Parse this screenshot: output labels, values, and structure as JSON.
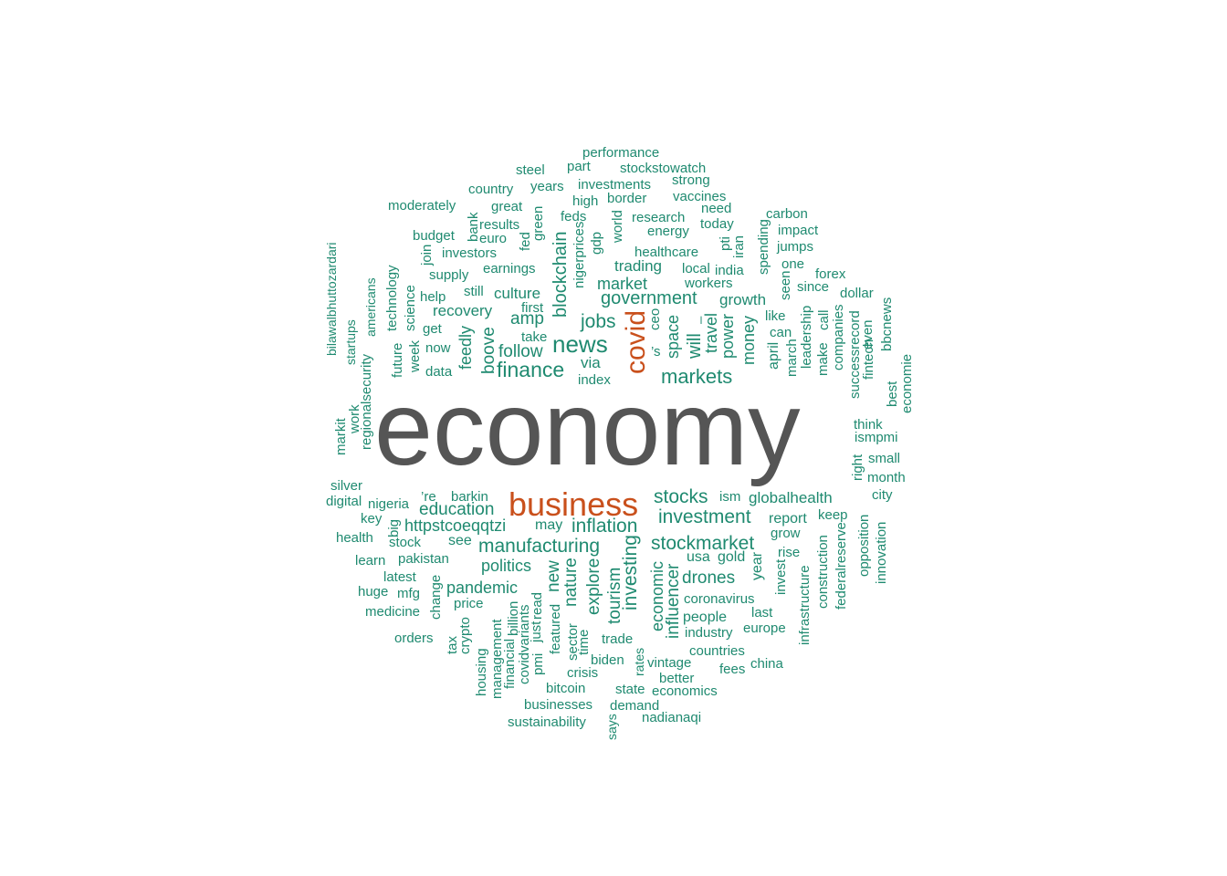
{
  "colors": {
    "dominant": "#555555",
    "major": "#c9501c",
    "minor": "#1f8a70"
  },
  "words": [
    {
      "text": "economy",
      "weight": 5
    },
    {
      "text": "business",
      "weight": 4
    },
    {
      "text": "covid",
      "weight": 4
    },
    {
      "text": "news",
      "weight": 3
    },
    {
      "text": "finance",
      "weight": 3
    },
    {
      "text": "markets",
      "weight": 3
    },
    {
      "text": "stocks",
      "weight": 3
    },
    {
      "text": "investment",
      "weight": 3
    },
    {
      "text": "stockmarket",
      "weight": 3
    },
    {
      "text": "manufacturing",
      "weight": 3
    },
    {
      "text": "inflation",
      "weight": 3
    },
    {
      "text": "government",
      "weight": 3
    },
    {
      "text": "investing",
      "weight": 3
    },
    {
      "text": "blockchain",
      "weight": 3
    },
    {
      "text": "jobs",
      "weight": 3
    },
    {
      "text": "education",
      "weight": 2
    },
    {
      "text": "politics",
      "weight": 2
    },
    {
      "text": "pandemic",
      "weight": 2
    },
    {
      "text": "drones",
      "weight": 2
    },
    {
      "text": "influencer",
      "weight": 2
    },
    {
      "text": "economic",
      "weight": 2
    },
    {
      "text": "tourism",
      "weight": 2
    },
    {
      "text": "explore",
      "weight": 2
    },
    {
      "text": "nature",
      "weight": 2
    },
    {
      "text": "new",
      "weight": 2
    },
    {
      "text": "httpstcoeqqtzi",
      "weight": 2
    },
    {
      "text": "follow",
      "weight": 2
    },
    {
      "text": "amp",
      "weight": 2
    },
    {
      "text": "culture",
      "weight": 2
    },
    {
      "text": "recovery",
      "weight": 2
    },
    {
      "text": "boove",
      "weight": 2
    },
    {
      "text": "feedly",
      "weight": 2
    },
    {
      "text": "via",
      "weight": 2
    },
    {
      "text": "market",
      "weight": 2
    },
    {
      "text": "trading",
      "weight": 2
    },
    {
      "text": "growth",
      "weight": 2
    },
    {
      "text": "money",
      "weight": 2
    },
    {
      "text": "power",
      "weight": 2
    },
    {
      "text": "travel",
      "weight": 2
    },
    {
      "text": "will",
      "weight": 2
    },
    {
      "text": "space",
      "weight": 2
    },
    {
      "text": "globalhealth",
      "weight": 2
    },
    {
      "text": "coronavirus",
      "weight": 1
    },
    {
      "text": "people",
      "weight": 1
    },
    {
      "text": "industry",
      "weight": 1
    },
    {
      "text": "europe",
      "weight": 1
    },
    {
      "text": "gold",
      "weight": 1
    },
    {
      "text": "usa",
      "weight": 1
    },
    {
      "text": "year",
      "weight": 1
    },
    {
      "text": "invest",
      "weight": 1
    },
    {
      "text": "last",
      "weight": 1
    },
    {
      "text": "rise",
      "weight": 1
    },
    {
      "text": "grow",
      "weight": 1
    },
    {
      "text": "report",
      "weight": 1
    },
    {
      "text": "keep",
      "weight": 1
    },
    {
      "text": "ism",
      "weight": 1
    },
    {
      "text": "countries",
      "weight": 1
    },
    {
      "text": "china",
      "weight": 1
    },
    {
      "text": "fees",
      "weight": 1
    },
    {
      "text": "vintage",
      "weight": 1
    },
    {
      "text": "better",
      "weight": 1
    },
    {
      "text": "economics",
      "weight": 1
    },
    {
      "text": "nadianaqi",
      "weight": 1
    },
    {
      "text": "demand",
      "weight": 1
    },
    {
      "text": "state",
      "weight": 1
    },
    {
      "text": "says",
      "weight": 1
    },
    {
      "text": "rates",
      "weight": 1
    },
    {
      "text": "biden",
      "weight": 1
    },
    {
      "text": "trade",
      "weight": 1
    },
    {
      "text": "crisis",
      "weight": 1
    },
    {
      "text": "time",
      "weight": 1
    },
    {
      "text": "sector",
      "weight": 1
    },
    {
      "text": "featured",
      "weight": 1
    },
    {
      "text": "bitcoin",
      "weight": 1
    },
    {
      "text": "businesses",
      "weight": 1
    },
    {
      "text": "sustainability",
      "weight": 1
    },
    {
      "text": "read",
      "weight": 1
    },
    {
      "text": "just",
      "weight": 1
    },
    {
      "text": "pmi",
      "weight": 1
    },
    {
      "text": "billion",
      "weight": 1
    },
    {
      "text": "covidvariants",
      "weight": 1
    },
    {
      "text": "financial",
      "weight": 1
    },
    {
      "text": "management",
      "weight": 1
    },
    {
      "text": "housing",
      "weight": 1
    },
    {
      "text": "crypto",
      "weight": 1
    },
    {
      "text": "tax",
      "weight": 1
    },
    {
      "text": "price",
      "weight": 1
    },
    {
      "text": "change",
      "weight": 1
    },
    {
      "text": "orders",
      "weight": 1
    },
    {
      "text": "medicine",
      "weight": 1
    },
    {
      "text": "mfg",
      "weight": 1
    },
    {
      "text": "huge",
      "weight": 1
    },
    {
      "text": "latest",
      "weight": 1
    },
    {
      "text": "learn",
      "weight": 1
    },
    {
      "text": "pakistan",
      "weight": 1
    },
    {
      "text": "health",
      "weight": 1
    },
    {
      "text": "stock",
      "weight": 1
    },
    {
      "text": "big",
      "weight": 1
    },
    {
      "text": "key",
      "weight": 1
    },
    {
      "text": "see",
      "weight": 1
    },
    {
      "text": "may",
      "weight": 1
    },
    {
      "text": "nigeria",
      "weight": 1
    },
    {
      "text": "digital",
      "weight": 1
    },
    {
      "text": "silver",
      "weight": 1
    },
    {
      "text": "’re",
      "weight": 1
    },
    {
      "text": "barkin",
      "weight": 1
    },
    {
      "text": "markit",
      "weight": 1
    },
    {
      "text": "work",
      "weight": 1
    },
    {
      "text": "regionalsecurity",
      "weight": 1
    },
    {
      "text": "bilawalbhuttozardari",
      "weight": 1
    },
    {
      "text": "startups",
      "weight": 1
    },
    {
      "text": "americans",
      "weight": 1
    },
    {
      "text": "technology",
      "weight": 1
    },
    {
      "text": "future",
      "weight": 1
    },
    {
      "text": "week",
      "weight": 1
    },
    {
      "text": "science",
      "weight": 1
    },
    {
      "text": "get",
      "weight": 1
    },
    {
      "text": "now",
      "weight": 1
    },
    {
      "text": "data",
      "weight": 1
    },
    {
      "text": "help",
      "weight": 1
    },
    {
      "text": "still",
      "weight": 1
    },
    {
      "text": "supply",
      "weight": 1
    },
    {
      "text": "join",
      "weight": 1
    },
    {
      "text": "investors",
      "weight": 1
    },
    {
      "text": "budget",
      "weight": 1
    },
    {
      "text": "bank",
      "weight": 1
    },
    {
      "text": "euro",
      "weight": 1
    },
    {
      "text": "results",
      "weight": 1
    },
    {
      "text": "moderately",
      "weight": 1
    },
    {
      "text": "great",
      "weight": 1
    },
    {
      "text": "country",
      "weight": 1
    },
    {
      "text": "years",
      "weight": 1
    },
    {
      "text": "steel",
      "weight": 1
    },
    {
      "text": "part",
      "weight": 1
    },
    {
      "text": "performance",
      "weight": 1
    },
    {
      "text": "stockstowatch",
      "weight": 1
    },
    {
      "text": "investments",
      "weight": 1
    },
    {
      "text": "strong",
      "weight": 1
    },
    {
      "text": "high",
      "weight": 1
    },
    {
      "text": "border",
      "weight": 1
    },
    {
      "text": "vaccines",
      "weight": 1
    },
    {
      "text": "feds",
      "weight": 1
    },
    {
      "text": "world",
      "weight": 1
    },
    {
      "text": "research",
      "weight": 1
    },
    {
      "text": "need",
      "weight": 1
    },
    {
      "text": "energy",
      "weight": 1
    },
    {
      "text": "today",
      "weight": 1
    },
    {
      "text": "healthcare",
      "weight": 1
    },
    {
      "text": "pti",
      "weight": 1
    },
    {
      "text": "iran",
      "weight": 1
    },
    {
      "text": "carbon",
      "weight": 1
    },
    {
      "text": "impact",
      "weight": 1
    },
    {
      "text": "jumps",
      "weight": 1
    },
    {
      "text": "one",
      "weight": 1
    },
    {
      "text": "spending",
      "weight": 1
    },
    {
      "text": "local",
      "weight": 1
    },
    {
      "text": "india",
      "weight": 1
    },
    {
      "text": "workers",
      "weight": 1
    },
    {
      "text": "seen",
      "weight": 1
    },
    {
      "text": "forex",
      "weight": 1
    },
    {
      "text": "since",
      "weight": 1
    },
    {
      "text": "dollar",
      "weight": 1
    },
    {
      "text": "like",
      "weight": 1
    },
    {
      "text": "can",
      "weight": 1
    },
    {
      "text": "april",
      "weight": 1
    },
    {
      "text": "march",
      "weight": 1
    },
    {
      "text": "leadership",
      "weight": 1
    },
    {
      "text": "make",
      "weight": 1
    },
    {
      "text": "call",
      "weight": 1
    },
    {
      "text": "companies",
      "weight": 1
    },
    {
      "text": "successrecord",
      "weight": 1
    },
    {
      "text": "fintech",
      "weight": 1
    },
    {
      "text": "even",
      "weight": 1
    },
    {
      "text": "bbcnews",
      "weight": 1
    },
    {
      "text": "best",
      "weight": 1
    },
    {
      "text": "economie",
      "weight": 1
    },
    {
      "text": "think",
      "weight": 1
    },
    {
      "text": "ismpmi",
      "weight": 1
    },
    {
      "text": "small",
      "weight": 1
    },
    {
      "text": "right",
      "weight": 1
    },
    {
      "text": "month",
      "weight": 1
    },
    {
      "text": "city",
      "weight": 1
    },
    {
      "text": "opposition",
      "weight": 1
    },
    {
      "text": "innovation",
      "weight": 1
    },
    {
      "text": "federalreserve",
      "weight": 1
    },
    {
      "text": "construction",
      "weight": 1
    },
    {
      "text": "infrastructure",
      "weight": 1
    },
    {
      "text": "index",
      "weight": 1
    },
    {
      "text": "first",
      "weight": 1
    },
    {
      "text": "take",
      "weight": 1
    },
    {
      "text": "earnings",
      "weight": 1
    },
    {
      "text": "green",
      "weight": 1
    },
    {
      "text": "fed",
      "weight": 1
    },
    {
      "text": "gdp",
      "weight": 1
    },
    {
      "text": "nigerprices",
      "weight": 1
    },
    {
      "text": "ceo",
      "weight": 1
    },
    {
      "text": "’s",
      "weight": 1
    },
    {
      "text": "–",
      "weight": 1
    }
  ]
}
